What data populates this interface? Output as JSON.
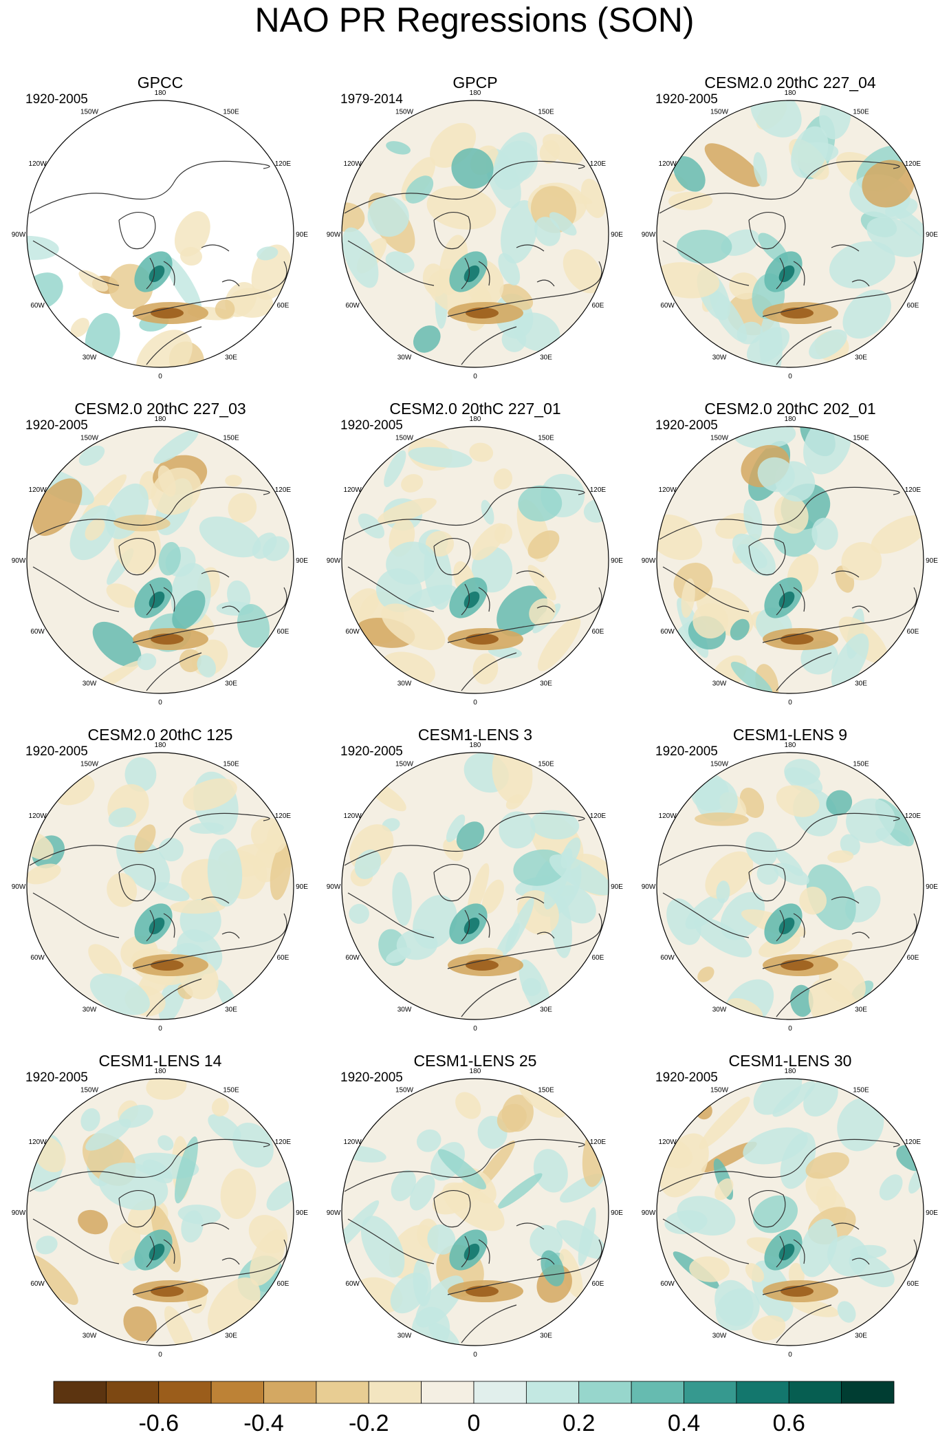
{
  "title": "NAO PR Regressions (SON)",
  "longitude_labels": [
    "180",
    "150E",
    "120E",
    "90E",
    "60E",
    "30E",
    "0",
    "30W",
    "60W",
    "90W",
    "120W",
    "150W"
  ],
  "panels": [
    {
      "title": "GPCC",
      "period": "1920-2005"
    },
    {
      "title": "GPCP",
      "period": "1979-2014"
    },
    {
      "title": "CESM2.0 20thC 227_04",
      "period": "1920-2005"
    },
    {
      "title": "CESM2.0 20thC 227_03",
      "period": "1920-2005"
    },
    {
      "title": "CESM2.0 20thC 227_01",
      "period": "1920-2005"
    },
    {
      "title": "CESM2.0 20thC 202_01",
      "period": "1920-2005"
    },
    {
      "title": "CESM2.0 20thC 125",
      "period": "1920-2005"
    },
    {
      "title": "CESM1-LENS 3",
      "period": "1920-2005"
    },
    {
      "title": "CESM1-LENS 9",
      "period": "1920-2005"
    },
    {
      "title": "CESM1-LENS 14",
      "period": "1920-2005"
    },
    {
      "title": "CESM1-LENS 25",
      "period": "1920-2005"
    },
    {
      "title": "CESM1-LENS 30",
      "period": "1920-2005"
    }
  ],
  "colorbar": {
    "colors": [
      "#5c3410",
      "#7d4812",
      "#9b5d1b",
      "#bd8236",
      "#d4a862",
      "#e8cd93",
      "#f3e5c0",
      "#f4efe3",
      "#e1efec",
      "#c3e8e2",
      "#97d6cc",
      "#66bbb0",
      "#36998f",
      "#13776d",
      "#065e51",
      "#003d32"
    ],
    "tick_labels": [
      "-0.6",
      "-0.4",
      "-0.2",
      "0",
      "0.2",
      "0.4",
      "0.6"
    ]
  }
}
